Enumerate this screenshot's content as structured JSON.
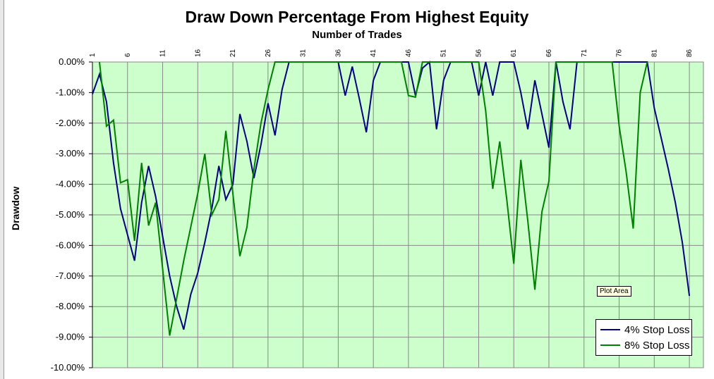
{
  "chart_data": {
    "type": "line",
    "title": "Draw Down Percentage From Highest Equity",
    "subtitle": "Number of Trades",
    "ylabel": "Drawdow",
    "xlabel": "Number of Trades",
    "x_tick_labels": [
      "1",
      "6",
      "11",
      "16",
      "21",
      "26",
      "31",
      "36",
      "41",
      "46",
      "51",
      "56",
      "61",
      "66",
      "71",
      "76",
      "81",
      "86"
    ],
    "x_ticks": [
      1,
      6,
      11,
      16,
      21,
      26,
      31,
      36,
      41,
      46,
      51,
      56,
      61,
      66,
      71,
      76,
      81,
      86
    ],
    "xlim": [
      1,
      88
    ],
    "y_tick_labels": [
      "0.00%",
      "-1.00%",
      "-2.00%",
      "-3.00%",
      "-4.00%",
      "-5.00%",
      "-6.00%",
      "-7.00%",
      "-8.00%",
      "-9.00%",
      "-10.00%"
    ],
    "ylim": [
      -10,
      0
    ],
    "grid": true,
    "legend_position": "bottom-right",
    "plot_background": "#ccffcc",
    "series": [
      {
        "name": "4% Stop Loss",
        "color": "#000080",
        "points": [
          [
            1,
            -1.05
          ],
          [
            2,
            -0.4
          ],
          [
            3,
            -1.3
          ],
          [
            4,
            -3.3
          ],
          [
            5,
            -4.8
          ],
          [
            7,
            -6.5
          ],
          [
            8,
            -4.6
          ],
          [
            9,
            -3.4
          ],
          [
            10,
            -4.4
          ],
          [
            11,
            -5.7
          ],
          [
            12,
            -7.0
          ],
          [
            13,
            -8.0
          ],
          [
            14,
            -8.75
          ],
          [
            15,
            -7.6
          ],
          [
            16,
            -6.9
          ],
          [
            17,
            -5.9
          ],
          [
            18,
            -4.8
          ],
          [
            19,
            -3.4
          ],
          [
            20,
            -4.5
          ],
          [
            21,
            -4.0
          ],
          [
            22,
            -1.7
          ],
          [
            23,
            -2.6
          ],
          [
            24,
            -3.8
          ],
          [
            25,
            -2.7
          ],
          [
            26,
            -1.35
          ],
          [
            27,
            -2.4
          ],
          [
            28,
            -0.9
          ],
          [
            29,
            0
          ],
          [
            36,
            0
          ],
          [
            37,
            -1.1
          ],
          [
            38,
            -0.15
          ],
          [
            39,
            -1.2
          ],
          [
            40,
            -2.3
          ],
          [
            41,
            -0.6
          ],
          [
            42,
            0
          ],
          [
            46,
            0
          ],
          [
            47,
            -1.1
          ],
          [
            48,
            -0.2
          ],
          [
            49,
            0
          ],
          [
            50,
            -2.2
          ],
          [
            51,
            -0.6
          ],
          [
            52,
            0
          ],
          [
            55,
            0
          ],
          [
            56,
            -1.1
          ],
          [
            57,
            0
          ],
          [
            58,
            -1.1
          ],
          [
            59,
            0
          ],
          [
            61,
            0
          ],
          [
            62,
            -1.0
          ],
          [
            63,
            -2.2
          ],
          [
            64,
            -0.6
          ],
          [
            65,
            -1.7
          ],
          [
            66,
            -2.8
          ],
          [
            67,
            0
          ],
          [
            68,
            -1.3
          ],
          [
            69,
            -2.2
          ],
          [
            70,
            0
          ],
          [
            80,
            0
          ],
          [
            81,
            -1.5
          ],
          [
            82,
            -2.5
          ],
          [
            83,
            -3.5
          ],
          [
            84,
            -4.6
          ],
          [
            85,
            -5.9
          ],
          [
            86,
            -7.65
          ]
        ]
      },
      {
        "name": "8% Stop Loss",
        "color": "#008000",
        "points": [
          [
            2,
            0
          ],
          [
            3,
            -2.1
          ],
          [
            4,
            -1.9
          ],
          [
            5,
            -3.95
          ],
          [
            6,
            -3.85
          ],
          [
            7,
            -5.85
          ],
          [
            8,
            -3.3
          ],
          [
            9,
            -5.35
          ],
          [
            10,
            -4.6
          ],
          [
            12,
            -8.95
          ],
          [
            14,
            -6.5
          ],
          [
            16,
            -4.3
          ],
          [
            17,
            -3.0
          ],
          [
            18,
            -5.0
          ],
          [
            19,
            -4.5
          ],
          [
            20,
            -2.25
          ],
          [
            22,
            -6.35
          ],
          [
            23,
            -5.4
          ],
          [
            24,
            -3.5
          ],
          [
            25,
            -2.0
          ],
          [
            26,
            -0.9
          ],
          [
            27,
            0
          ],
          [
            45,
            0
          ],
          [
            46,
            -1.1
          ],
          [
            47,
            -1.15
          ],
          [
            48,
            0
          ],
          [
            56,
            0
          ],
          [
            57,
            -1.6
          ],
          [
            58,
            -4.15
          ],
          [
            59,
            -2.6
          ],
          [
            60,
            -4.5
          ],
          [
            61,
            -6.6
          ],
          [
            62,
            -3.2
          ],
          [
            63,
            -5.2
          ],
          [
            64,
            -7.45
          ],
          [
            65,
            -4.9
          ],
          [
            66,
            -3.9
          ],
          [
            67,
            0
          ],
          [
            75,
            0
          ],
          [
            76,
            -2.1
          ],
          [
            77,
            -3.6
          ],
          [
            78,
            -5.45
          ],
          [
            79,
            -1.0
          ],
          [
            80,
            0
          ]
        ]
      }
    ]
  },
  "tooltip": "Plot Area"
}
